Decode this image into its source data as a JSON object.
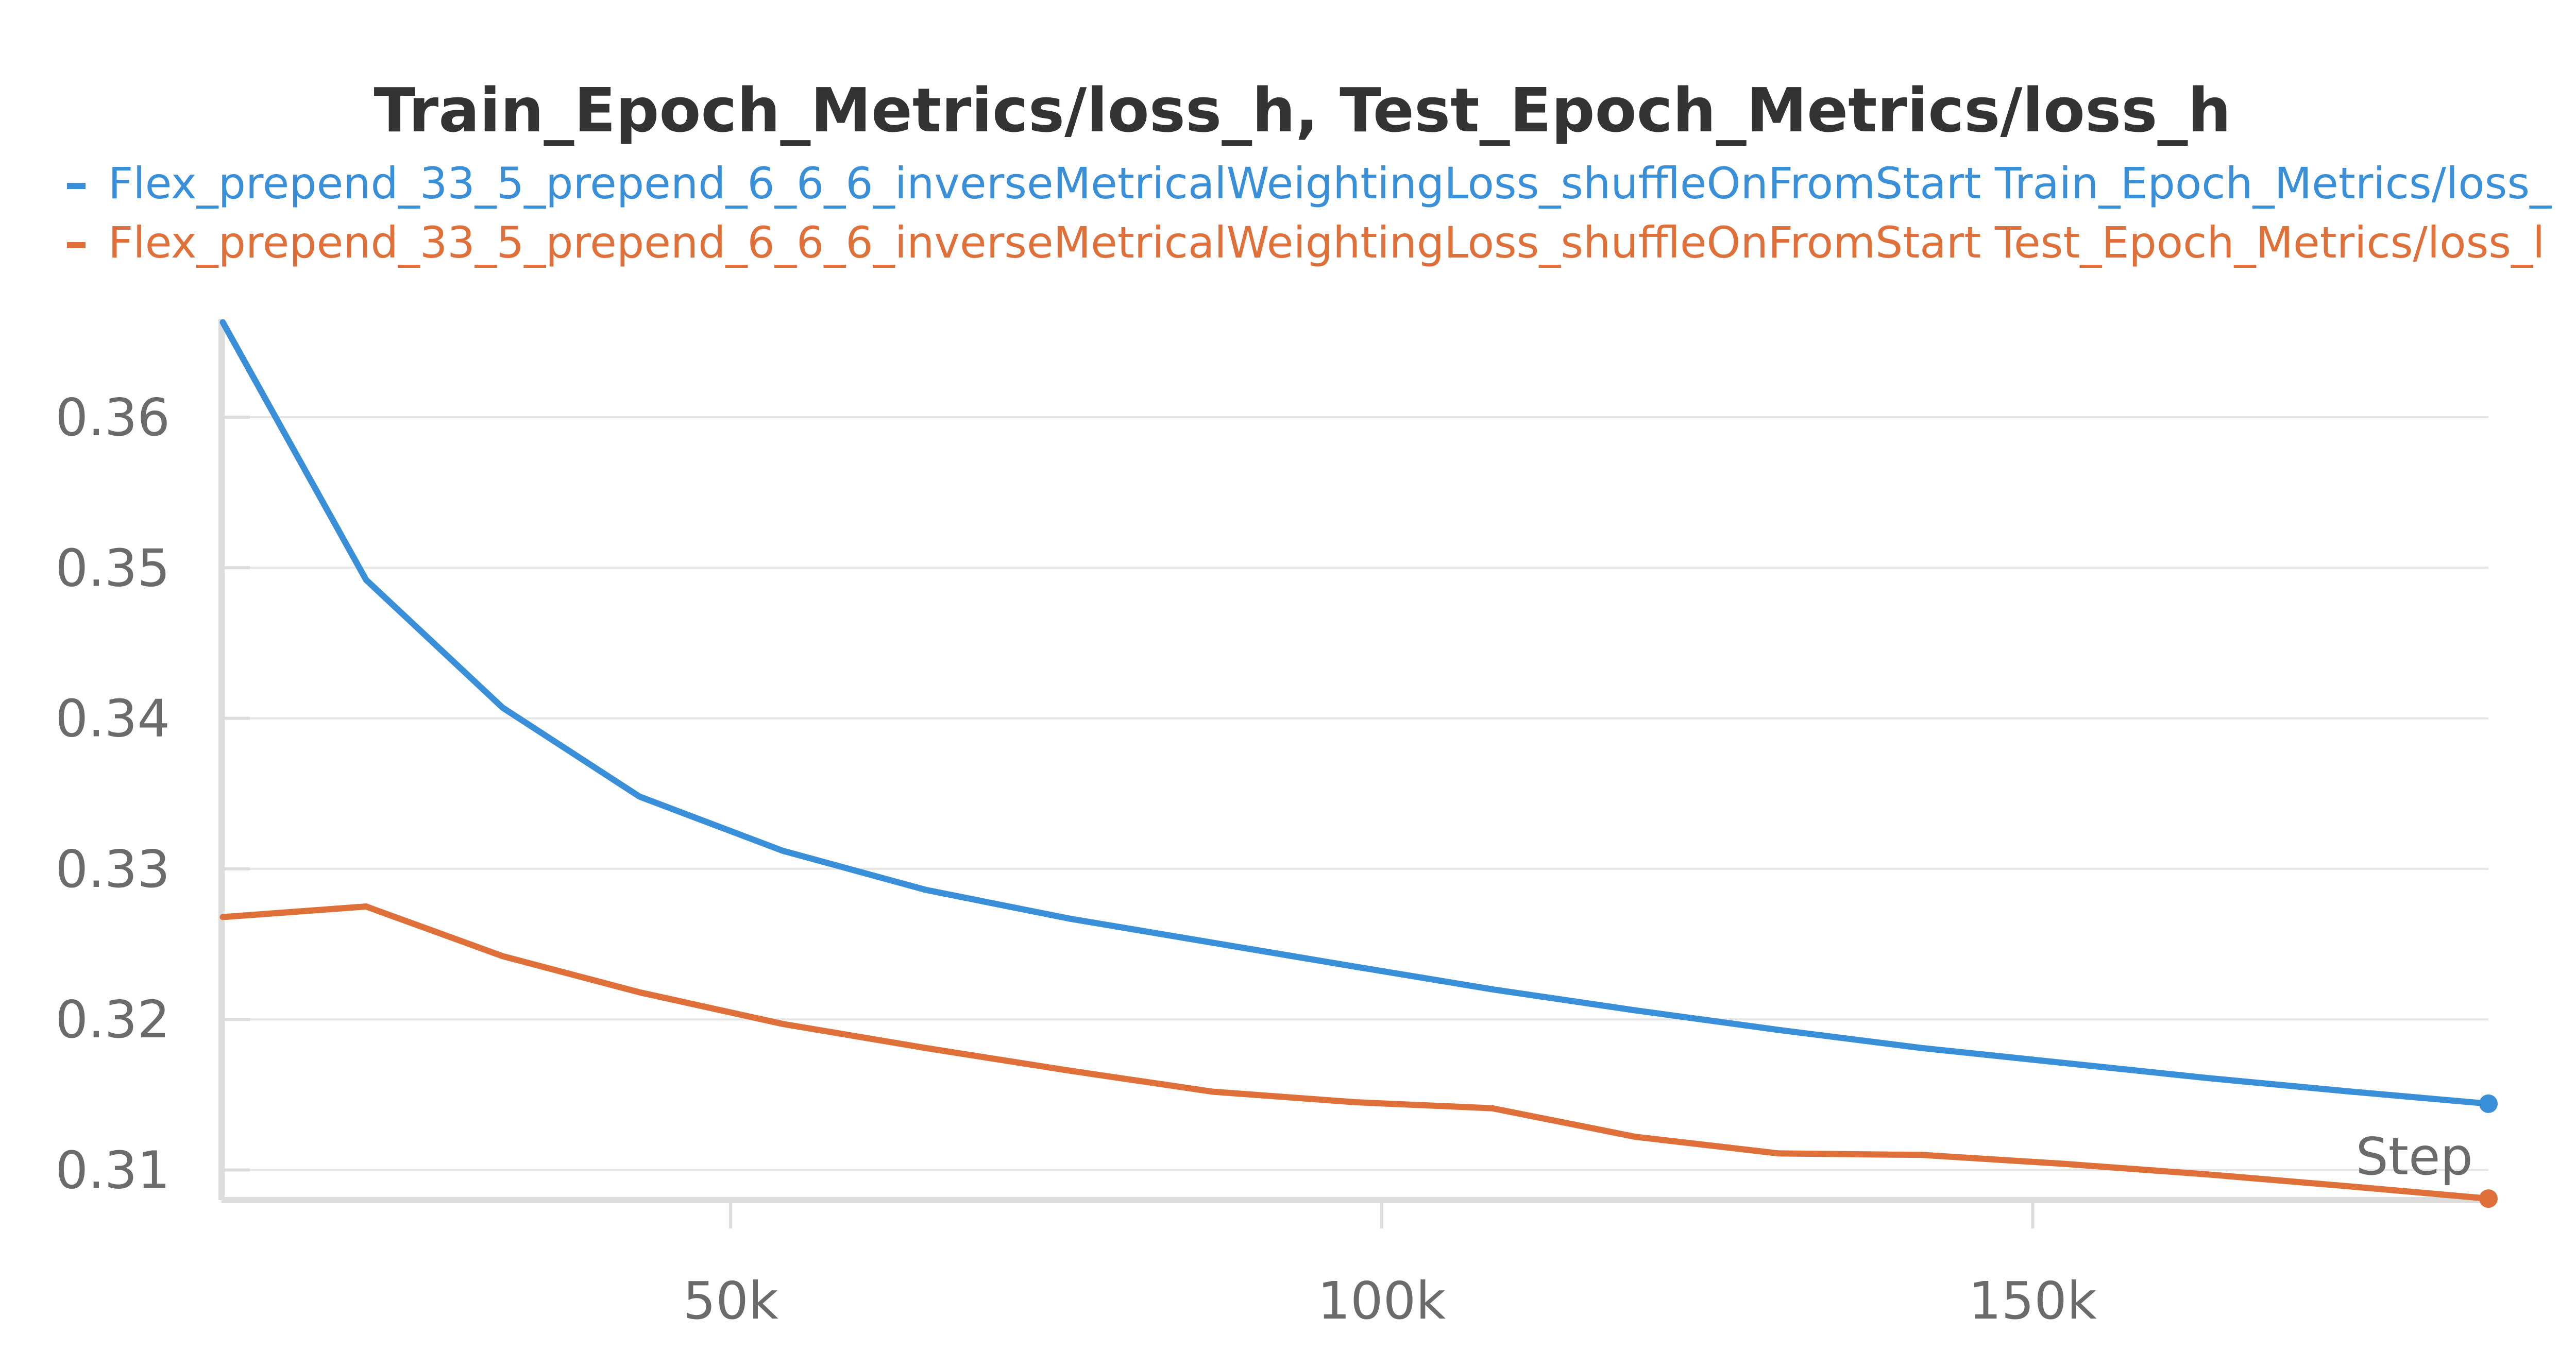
{
  "chart_data": {
    "type": "line",
    "title": "Train_Epoch_Metrics/loss_h, Test_Epoch_Metrics/loss_h",
    "xlabel": "Step",
    "ylabel": "",
    "xlim": [
      10900,
      185000
    ],
    "ylim": [
      0.308,
      0.3665
    ],
    "x_ticks": [
      50000,
      100000,
      150000
    ],
    "x_tick_labels": [
      "50k",
      "100k",
      "150k"
    ],
    "y_ticks": [
      0.31,
      0.32,
      0.33,
      0.34,
      0.35,
      0.36
    ],
    "y_tick_labels": [
      "0.31",
      "0.32",
      "0.33",
      "0.34",
      "0.35",
      "0.36"
    ],
    "grid": true,
    "legend_position": "top-left",
    "x": [
      11000,
      22000,
      32500,
      43000,
      54000,
      65000,
      76000,
      87000,
      98000,
      108500,
      119500,
      130500,
      141500,
      152500,
      163500,
      174500,
      185000
    ],
    "series": [
      {
        "name": "Flex_prepend_33_5_prepend_6_6_6_inverseMetricalWeightingLoss_shuffleOnFromStart Train_Epoch_Metrics/loss_",
        "color": "#3a8fd9",
        "values": [
          0.3663,
          0.3492,
          0.3407,
          0.3348,
          0.3312,
          0.3286,
          0.3267,
          0.3251,
          0.3235,
          0.322,
          0.3206,
          0.3193,
          0.3181,
          0.3171,
          0.3161,
          0.3152,
          0.3144
        ]
      },
      {
        "name": "Flex_prepend_33_5_prepend_6_6_6_inverseMetricalWeightingLoss_shuffleOnFromStart Test_Epoch_Metrics/loss_l",
        "color": "#e0703a",
        "values": [
          0.3268,
          0.3275,
          0.3242,
          0.3218,
          0.3197,
          0.3181,
          0.3166,
          0.3152,
          0.3145,
          0.3141,
          0.3122,
          0.3111,
          0.311,
          0.3104,
          0.3097,
          0.3089,
          0.3081
        ]
      }
    ]
  }
}
